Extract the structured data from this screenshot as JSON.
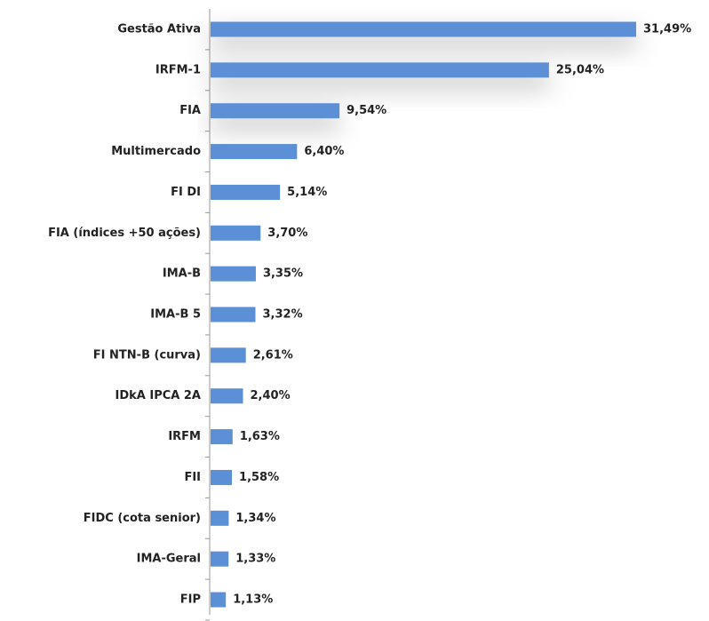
{
  "chart_data": {
    "type": "barh",
    "categories": [
      "Gestão Ativa",
      "IRFM-1",
      "FIA",
      "Multimercado",
      "FI DI",
      "FIA (índices +50 ações)",
      "IMA-B",
      "IMA-B 5",
      "FI NTN-B (curva)",
      "IDkA IPCA 2A",
      "IRFM",
      "FII",
      "FIDC (cota senior)",
      "IMA-Geral",
      "FIP"
    ],
    "values": [
      31.49,
      25.04,
      9.54,
      6.4,
      5.14,
      3.7,
      3.35,
      3.32,
      2.61,
      2.4,
      1.63,
      1.58,
      1.34,
      1.33,
      1.13
    ],
    "value_labels": [
      "31,49%",
      "25,04%",
      "9,54%",
      "6,40%",
      "5,14%",
      "3,70%",
      "3,35%",
      "3,32%",
      "2,61%",
      "2,40%",
      "1,63%",
      "1,58%",
      "1,34%",
      "1,33%",
      "1,13%"
    ],
    "color": "#5b8fd6"
  }
}
